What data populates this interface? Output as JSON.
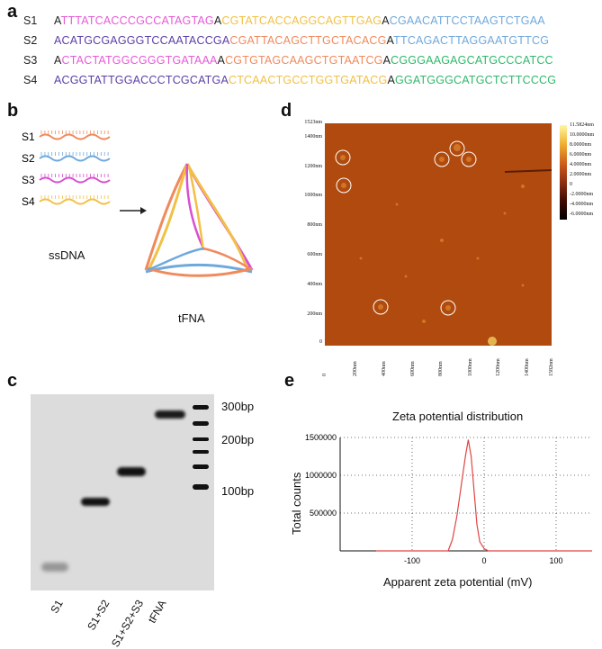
{
  "panels": {
    "a": "a",
    "b": "b",
    "c": "c",
    "d": "d",
    "e": "e"
  },
  "sequences": [
    {
      "name": "S1",
      "parts": [
        {
          "text": "A",
          "color": "#222222"
        },
        {
          "text": "TTTATCACCCGCCATAGTAG",
          "color": "#e65ad6"
        },
        {
          "text": "A",
          "color": "#222222"
        },
        {
          "text": "CGTATCACCAGGCAGTTGAG",
          "color": "#f2c046"
        },
        {
          "text": "A",
          "color": "#222222"
        },
        {
          "text": "CGAACATTCCTAAGTCTGAA",
          "color": "#6fa8dc"
        }
      ]
    },
    {
      "name": "S2",
      "parts": [
        {
          "text": "ACATGCGAGGGTCCAATACCGA",
          "color": "#5b3fa8"
        },
        {
          "text": "CGATTACAGCTTGCTACACG",
          "color": "#f08a5d"
        },
        {
          "text": "A",
          "color": "#222222"
        },
        {
          "text": "TTCAGACTTAGGAATGTTCG",
          "color": "#6fa8dc"
        }
      ]
    },
    {
      "name": "S3",
      "parts": [
        {
          "text": "A",
          "color": "#222222"
        },
        {
          "text": "CTACTATGGCGGGTGATAAA",
          "color": "#e65ad6"
        },
        {
          "text": "A",
          "color": "#222222"
        },
        {
          "text": "CGTGTAGCAAGCTGTAATCG",
          "color": "#f08a5d"
        },
        {
          "text": "A",
          "color": "#222222"
        },
        {
          "text": "CGGGAAGAGCATGCCCATCC",
          "color": "#2fb86a"
        }
      ]
    },
    {
      "name": "S4",
      "parts": [
        {
          "text": "ACGGTATTGGACCCTCGCATGA",
          "color": "#5b3fa8"
        },
        {
          "text": "CTCAACTGCCTGGTGATACG",
          "color": "#f2c046"
        },
        {
          "text": "A",
          "color": "#222222"
        },
        {
          "text": "GGATGGGCATGCTCTTCCCG",
          "color": "#2fb86a"
        }
      ]
    }
  ],
  "panel_b": {
    "strands": [
      {
        "name": "S1",
        "color": "#f08a5d"
      },
      {
        "name": "S2",
        "color": "#6fa8dc"
      },
      {
        "name": "S3",
        "color": "#d94fd0"
      },
      {
        "name": "S4",
        "color": "#f2c046"
      }
    ],
    "ssdna_label": "ssDNA",
    "tfna_label": "tFNA"
  },
  "panel_c": {
    "lanes": [
      "S1",
      "S1+S2",
      "S1+S2+S3",
      "tFNA"
    ],
    "markers": [
      "300bp",
      "200bp",
      "100bp"
    ]
  },
  "panel_d": {
    "y_ticks": [
      "1523nm",
      "1400nm",
      "1200nm",
      "1000nm",
      "800nm",
      "600nm",
      "400nm",
      "200nm",
      "0"
    ],
    "x_ticks": [
      "0",
      "200nm",
      "400nm",
      "600nm",
      "800nm",
      "1000nm",
      "1200nm",
      "1400nm",
      "1582nm"
    ],
    "colorbar_ticks": [
      "11.5824nm",
      "10.0000nm",
      "8.0000nm",
      "6.0000nm",
      "4.0000nm",
      "2.0000nm",
      "0",
      "-2.0000nm",
      "-4.0000nm",
      "-6.0000nm"
    ],
    "colorbar_range": [
      -6,
      11.58
    ]
  },
  "chart_data": {
    "type": "line",
    "title": "Zeta potential distribution",
    "xlabel": "Apparent zeta potential (mV)",
    "ylabel": "Total counts",
    "xlim": [
      -200,
      150
    ],
    "ylim": [
      0,
      1500000
    ],
    "x_ticks": [
      "-100",
      "0",
      "100"
    ],
    "y_ticks": [
      "1500000",
      "1000000",
      "500000"
    ],
    "grid": true,
    "series": [
      {
        "color": "#e04545",
        "x": [
          -150,
          -50,
          -44,
          -38,
          -32,
          -26,
          -22,
          -18,
          -14,
          -10,
          -6,
          0,
          6,
          150
        ],
        "y": [
          0,
          0,
          150000,
          450000,
          850000,
          1250000,
          1470000,
          1250000,
          800000,
          350000,
          120000,
          30000,
          0,
          0
        ]
      }
    ]
  }
}
